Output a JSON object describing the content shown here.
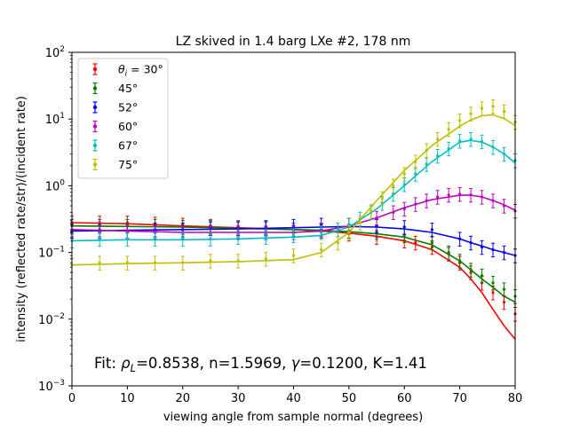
{
  "chart_data": {
    "type": "scatter",
    "title": "LZ skived in 1.4 barg LXe #2, 178 nm",
    "xlabel": "viewing angle from sample normal (degrees)",
    "ylabel": "intensity (reflected rate/str)/(incident rate)",
    "xlim": [
      0,
      80
    ],
    "ylim": [
      0.001,
      100
    ],
    "yscale": "log",
    "x_ticks": [
      "0",
      "10",
      "20",
      "30",
      "40",
      "50",
      "60",
      "70",
      "80"
    ],
    "y_ticks": [
      {
        "base": "10",
        "exp": "−3"
      },
      {
        "base": "10",
        "exp": "−2"
      },
      {
        "base": "10",
        "exp": "−1"
      },
      {
        "base": "10",
        "exp": "0"
      },
      {
        "base": "10",
        "exp": "1"
      },
      {
        "base": "10",
        "exp": "2"
      }
    ],
    "grid": false,
    "legend_position": "top-left",
    "annotation": {
      "prefix": "Fit: ",
      "rho_symbol": "ρ",
      "rho_sub": "L",
      "rho_value": "=0.8538, n=1.5969, ",
      "gamma_symbol": "γ",
      "gamma_value": "=0.1200, K=1.41"
    },
    "series": [
      {
        "name": "θ",
        "name_sub": "i",
        "name_rest": " = 30°",
        "color": "#ff0000",
        "data_x": [
          0,
          5,
          10,
          15,
          20,
          25,
          30,
          35,
          40,
          45,
          50,
          55,
          60,
          62,
          65,
          68,
          70,
          72,
          74,
          76,
          78,
          80
        ],
        "data_y": [
          0.28,
          0.28,
          0.28,
          0.27,
          0.26,
          0.25,
          0.24,
          0.23,
          0.22,
          0.21,
          0.19,
          0.17,
          0.15,
          0.14,
          0.12,
          0.095,
          0.07,
          0.05,
          0.035,
          0.025,
          0.018,
          0.012
        ],
        "fit_x": [
          0,
          10,
          20,
          30,
          40,
          45,
          50,
          55,
          60,
          65,
          70,
          72,
          74,
          76,
          78,
          80
        ],
        "fit_y": [
          0.28,
          0.27,
          0.25,
          0.235,
          0.22,
          0.21,
          0.195,
          0.175,
          0.15,
          0.11,
          0.06,
          0.04,
          0.025,
          0.014,
          0.008,
          0.005
        ]
      },
      {
        "name": "45°",
        "color": "#008000",
        "data_x": [
          0,
          5,
          10,
          15,
          20,
          25,
          30,
          35,
          40,
          45,
          50,
          55,
          60,
          65,
          68,
          70,
          72,
          74,
          76,
          78,
          80
        ],
        "data_y": [
          0.25,
          0.25,
          0.25,
          0.25,
          0.24,
          0.24,
          0.23,
          0.23,
          0.22,
          0.22,
          0.21,
          0.2,
          0.18,
          0.14,
          0.1,
          0.075,
          0.055,
          0.045,
          0.035,
          0.028,
          0.022
        ],
        "fit_x": [
          0,
          10,
          20,
          30,
          40,
          45,
          50,
          55,
          60,
          65,
          70,
          72,
          74,
          76,
          78,
          80
        ],
        "fit_y": [
          0.25,
          0.245,
          0.24,
          0.23,
          0.22,
          0.215,
          0.205,
          0.19,
          0.17,
          0.13,
          0.075,
          0.055,
          0.04,
          0.03,
          0.022,
          0.018
        ]
      },
      {
        "name": "52°",
        "color": "#0000ff",
        "data_x": [
          0,
          5,
          10,
          15,
          20,
          25,
          30,
          35,
          40,
          45,
          50,
          55,
          60,
          65,
          70,
          72,
          74,
          76,
          78,
          80
        ],
        "data_y": [
          0.21,
          0.21,
          0.21,
          0.22,
          0.22,
          0.23,
          0.23,
          0.24,
          0.25,
          0.26,
          0.26,
          0.25,
          0.24,
          0.22,
          0.16,
          0.14,
          0.12,
          0.11,
          0.1,
          0.09
        ],
        "fit_x": [
          0,
          10,
          20,
          30,
          40,
          45,
          50,
          55,
          60,
          65,
          70,
          72,
          74,
          76,
          78,
          80
        ],
        "fit_y": [
          0.21,
          0.215,
          0.22,
          0.225,
          0.235,
          0.24,
          0.245,
          0.24,
          0.225,
          0.2,
          0.16,
          0.14,
          0.125,
          0.11,
          0.1,
          0.09
        ]
      },
      {
        "name": "60°",
        "color": "#bf00bf",
        "data_x": [
          0,
          5,
          10,
          15,
          20,
          25,
          30,
          35,
          40,
          45,
          50,
          55,
          58,
          60,
          62,
          64,
          66,
          68,
          70,
          72,
          74,
          76,
          78,
          80
        ],
        "data_y": [
          0.22,
          0.22,
          0.21,
          0.2,
          0.2,
          0.2,
          0.2,
          0.2,
          0.2,
          0.22,
          0.26,
          0.33,
          0.4,
          0.45,
          0.53,
          0.6,
          0.68,
          0.73,
          0.75,
          0.73,
          0.68,
          0.6,
          0.5,
          0.42
        ],
        "fit_x": [
          0,
          10,
          20,
          30,
          40,
          45,
          50,
          55,
          60,
          65,
          70,
          72,
          74,
          76,
          78,
          80
        ],
        "fit_y": [
          0.22,
          0.21,
          0.2,
          0.2,
          0.2,
          0.21,
          0.25,
          0.33,
          0.47,
          0.62,
          0.72,
          0.72,
          0.68,
          0.6,
          0.52,
          0.43
        ]
      },
      {
        "name": "67°",
        "color": "#00bfbf",
        "data_x": [
          0,
          5,
          10,
          15,
          20,
          25,
          30,
          35,
          40,
          45,
          48,
          50,
          52,
          54,
          56,
          58,
          60,
          62,
          64,
          66,
          68,
          70,
          72,
          74,
          76,
          78,
          80
        ],
        "data_y": [
          0.15,
          0.16,
          0.16,
          0.16,
          0.16,
          0.16,
          0.17,
          0.17,
          0.18,
          0.2,
          0.22,
          0.26,
          0.32,
          0.4,
          0.55,
          0.75,
          1.05,
          1.5,
          2.1,
          2.8,
          3.6,
          4.7,
          5.0,
          4.6,
          3.8,
          3.0,
          2.4
        ],
        "fit_x": [
          0,
          10,
          20,
          30,
          40,
          45,
          50,
          55,
          60,
          65,
          70,
          72,
          74,
          76,
          78,
          80
        ],
        "fit_y": [
          0.15,
          0.155,
          0.155,
          0.16,
          0.17,
          0.18,
          0.24,
          0.45,
          1.0,
          2.3,
          4.5,
          4.8,
          4.5,
          3.8,
          3.0,
          2.2
        ]
      },
      {
        "name": "75°",
        "color": "#bfbf00",
        "data_x": [
          0,
          5,
          10,
          15,
          20,
          25,
          30,
          35,
          40,
          45,
          48,
          50,
          52,
          54,
          56,
          58,
          60,
          62,
          64,
          66,
          68,
          70,
          72,
          74,
          76,
          78,
          80
        ],
        "data_y": [
          0.065,
          0.07,
          0.07,
          0.07,
          0.07,
          0.075,
          0.075,
          0.08,
          0.09,
          0.11,
          0.14,
          0.2,
          0.28,
          0.42,
          0.65,
          1.0,
          1.5,
          2.3,
          3.4,
          5.0,
          7.0,
          9.5,
          12.0,
          14.5,
          15.5,
          13.0,
          9.0
        ],
        "fit_x": [
          0,
          10,
          20,
          30,
          40,
          45,
          50,
          55,
          60,
          65,
          70,
          72,
          74,
          76,
          78,
          80
        ],
        "fit_y": [
          0.065,
          0.068,
          0.07,
          0.073,
          0.078,
          0.1,
          0.2,
          0.6,
          1.7,
          4.0,
          7.8,
          9.7,
          11.2,
          11.6,
          10.2,
          8.0
        ]
      }
    ]
  }
}
